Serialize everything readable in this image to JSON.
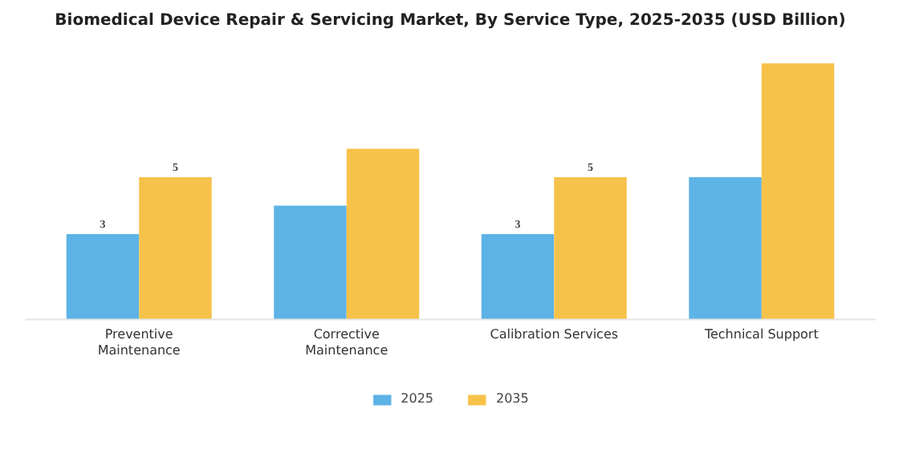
{
  "chart_data": {
    "type": "bar",
    "title": "Biomedical Device Repair & Servicing Market, By Service Type, 2025-2035 (USD Billion)",
    "categories": [
      "Preventive\nMaintenance",
      "Corrective\nMaintenance",
      "Calibration Services",
      "Technical Support"
    ],
    "series": [
      {
        "name": "2025",
        "color": "#5db3e6",
        "values": [
          3,
          4,
          3,
          5
        ],
        "value_labels": [
          "3",
          null,
          "3",
          null
        ]
      },
      {
        "name": "2035",
        "color": "#f7c24a",
        "values": [
          5,
          6,
          5,
          9
        ],
        "value_labels": [
          "5",
          null,
          "5",
          null
        ]
      }
    ],
    "legend": "bottom"
  }
}
